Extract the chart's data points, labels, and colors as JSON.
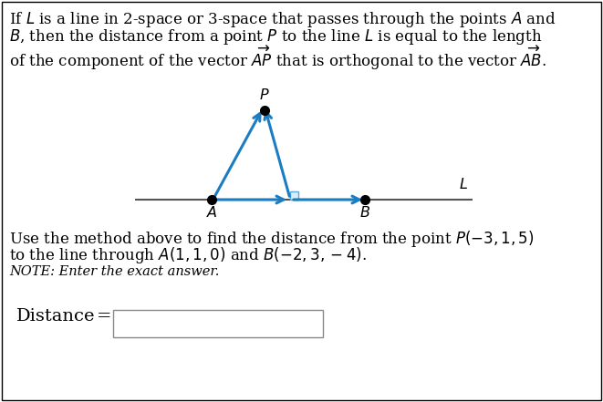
{
  "bg_color": "#ffffff",
  "border_color": "#000000",
  "line1": "If $L$ is a line in 2-space or 3-space that passes through the points $A$ and",
  "line2": "$B$, then the distance from a point $P$ to the line $L$ is equal to the length",
  "line3": "of the component of the vector $\\overrightarrow{AP}$ that is orthogonal to the vector $\\overrightarrow{AB}$.",
  "line4": "Use the method above to find the distance from the point $P(-3, 1, 5)$",
  "line5": "to the line through $A(1, 1, 0)$ and $B(-2, 3, -4)$.",
  "note_text": "NOTE: Enter the exact answer.",
  "label_A": "$A$",
  "label_B": "$B$",
  "label_P": "$P$",
  "label_L": "$L$",
  "line_color": "#555555",
  "arrow_color": "#1a7dc4",
  "dot_color": "#000000",
  "right_angle_color": "#5aaae0",
  "fontsize_main": 12.0,
  "fontsize_note": 10.5,
  "fontsize_label": 11.5,
  "fontsize_distance": 14
}
